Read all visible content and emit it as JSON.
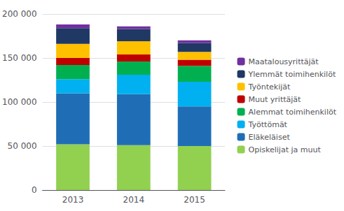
{
  "chart_data": {
    "type": "bar",
    "stacked": true,
    "categories": [
      "2013",
      "2014",
      "2015"
    ],
    "series": [
      {
        "name": "Opiskelijat ja muut",
        "color": "#92d050",
        "values": [
          52000,
          51000,
          50000
        ]
      },
      {
        "name": "Eläkeläiset",
        "color": "#1f6eb5",
        "values": [
          58000,
          58000,
          45000
        ]
      },
      {
        "name": "Työttömät",
        "color": "#00b0f0",
        "values": [
          16000,
          22000,
          28000
        ]
      },
      {
        "name": "Alemmat toimihenkilöt",
        "color": "#00b050",
        "values": [
          16000,
          15000,
          18000
        ]
      },
      {
        "name": "Muut yrittäjät",
        "color": "#c00000",
        "values": [
          8000,
          8000,
          7000
        ]
      },
      {
        "name": "Työntekijät",
        "color": "#ffc000",
        "values": [
          16000,
          15000,
          9000
        ]
      },
      {
        "name": "Ylemmät toimihenkilöt",
        "color": "#1f3864",
        "values": [
          18000,
          14000,
          10000
        ]
      },
      {
        "name": "Maatalousyrittäjät",
        "color": "#7030a0",
        "values": [
          4000,
          3000,
          3000
        ]
      }
    ],
    "ylim": [
      0,
      200000
    ],
    "yticks": [
      0,
      {
        "value": 50000,
        "label": "50 000"
      },
      {
        "value": 100000,
        "label": "100 000"
      },
      {
        "value": 150000,
        "label": "150 000"
      },
      {
        "value": 200000,
        "label": "200 000"
      }
    ],
    "grid": true,
    "legend": "right"
  }
}
